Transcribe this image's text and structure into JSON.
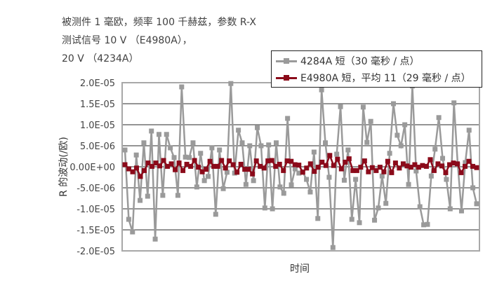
{
  "title_lines": [
    "被测件 1 毫欧，频率 100 千赫兹，参数 R-X",
    "测试信号 10 V （E4980A），",
    "20 V （4234A）"
  ],
  "chart_data": {
    "type": "line",
    "title": "被测件 1 毫欧，频率 100 千赫兹，参数 R-X 测试信号 10 V （E4980A）， 20 V （4234A）",
    "xlabel": "时间",
    "ylabel": "R 的波动(/欧)",
    "ylim": [
      -2e-05,
      2e-05
    ],
    "yticks": [
      2e-05,
      1.5e-05,
      1e-05,
      5e-06,
      0,
      -5e-06,
      -1e-05,
      -1.5e-05,
      -2e-05
    ],
    "ytick_labels": [
      "2.0E-05",
      "1.5E-05",
      "1.0E-05",
      "5.0E-06",
      "0.00E+00",
      "-5.0E-06",
      "-1.0E-05",
      "-1.5E-05",
      "-2.0E-05"
    ],
    "grid": "horizontal",
    "legend_position": "top-right",
    "value_unit_scale": 1e-06,
    "series": [
      {
        "name": "4284A 短（30 毫秒 / 点）",
        "color": "#9a9a9a",
        "values": [
          4.0,
          -12.5,
          -15.5,
          2.8,
          -8.0,
          5.7,
          -7.0,
          8.5,
          -17.2,
          7.7,
          -6.8,
          7.7,
          4.5,
          2.2,
          -6.8,
          19.0,
          2.3,
          2.2,
          5.7,
          -4.8,
          3.2,
          -3.3,
          -2.3,
          4.5,
          -11.3,
          4.0,
          -5.2,
          -1.3,
          19.8,
          -1.5,
          8.7,
          5.7,
          -4.2,
          5.0,
          -3.3,
          9.3,
          5.0,
          -9.8,
          5.2,
          -10.0,
          5.7,
          -4.8,
          -6.3,
          11.5,
          -4.3,
          -0.5,
          -1.5,
          -1.2,
          -3.0,
          -6.0,
          3.5,
          -12.3,
          18.3,
          5.7,
          -2.5,
          -19.2,
          3.0,
          14.3,
          -3.2,
          4.0,
          -12.5,
          -3.0,
          -13.3,
          14.2,
          5.8,
          10.8,
          -12.7,
          -9.8,
          -2.2,
          -8.7,
          3.2,
          15.0,
          7.5,
          5.0,
          10.0,
          -4.2,
          19.2,
          -1.0,
          -9.5,
          -13.8,
          -13.7,
          -2.2,
          4.2,
          11.7,
          2.0,
          -3.0,
          -10.0,
          15.2,
          0.5,
          -10.5,
          1.0,
          8.7,
          -5.0,
          -8.8
        ]
      },
      {
        "name": "E4980A 短，平均 11（29 毫秒 / 点）",
        "color": "#8b0a1a",
        "values": [
          0.5,
          -0.5,
          -1.2,
          -0.3,
          -2.3,
          -0.9,
          0.9,
          0.1,
          0.9,
          0.2,
          1.5,
          0.1,
          0.7,
          -0.7,
          0.9,
          -0.9,
          0.6,
          0.1,
          1.5,
          -0.1,
          -1.2,
          -0.6,
          1.3,
          0.1,
          0.1,
          1.5,
          -0.3,
          1.4,
          0.5,
          -1.3,
          0.6,
          -0.6,
          -0.6,
          -1.7,
          1.4,
          0.1,
          -0.3,
          1.4,
          1.5,
          0.1,
          0.6,
          -0.9,
          1.4,
          1.3,
          0.5,
          0.4,
          -1.3,
          -0.3,
          0.7,
          -1.1,
          -0.1,
          1.1,
          0.3,
          2.7,
          0.3,
          1.8,
          -0.5,
          1.1,
          1.9,
          -0.9,
          -0.9,
          -0.1,
          1.4,
          -1.2,
          -0.2,
          -0.9,
          -0.1,
          -1.2,
          1.3,
          -1.4,
          0.9,
          -0.3,
          0.7,
          0.2,
          -0.1,
          0.5,
          -0.1,
          0.3,
          0.1,
          1.7,
          -0.9,
          0.7,
          0.2,
          -1.4,
          0.5,
          0.9,
          0.7,
          -1.4,
          0.1,
          1.3,
          0.1,
          -0.2
        ]
      }
    ]
  },
  "legend": {
    "items": [
      "4284A 短（30 毫秒 / 点）",
      "E4980A 短，平均 11（29 毫秒 / 点）"
    ]
  }
}
